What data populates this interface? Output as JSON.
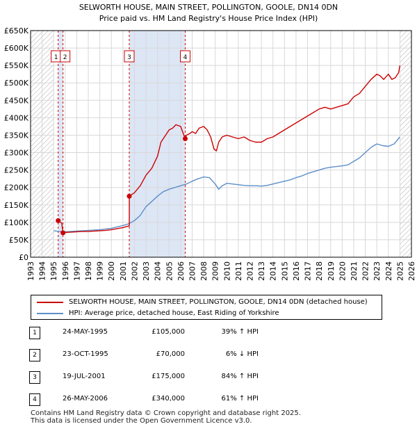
{
  "chart_data": {
    "type": "line",
    "title": "SELWORTH HOUSE, MAIN STREET, POLLINGTON, GOOLE, DN14 0DN",
    "subtitle": "Price paid vs. HM Land Registry's House Price Index (HPI)",
    "xlabel": "",
    "ylabel": "",
    "xlim": [
      1993,
      2026
    ],
    "ylim": [
      0,
      650000
    ],
    "x_ticks": [
      1993,
      1994,
      1995,
      1996,
      1997,
      1998,
      1999,
      2000,
      2001,
      2002,
      2003,
      2004,
      2005,
      2006,
      2007,
      2008,
      2009,
      2010,
      2011,
      2012,
      2013,
      2014,
      2015,
      2016,
      2017,
      2018,
      2019,
      2020,
      2021,
      2022,
      2023,
      2024,
      2025,
      2026
    ],
    "y_ticks": [
      {
        "value": 0,
        "label": "£0"
      },
      {
        "value": 50000,
        "label": "£50K"
      },
      {
        "value": 100000,
        "label": "£100K"
      },
      {
        "value": 150000,
        "label": "£150K"
      },
      {
        "value": 200000,
        "label": "£200K"
      },
      {
        "value": 250000,
        "label": "£250K"
      },
      {
        "value": 300000,
        "label": "£300K"
      },
      {
        "value": 350000,
        "label": "£350K"
      },
      {
        "value": 400000,
        "label": "£400K"
      },
      {
        "value": 450000,
        "label": "£450K"
      },
      {
        "value": 500000,
        "label": "£500K"
      },
      {
        "value": 550000,
        "label": "£550K"
      },
      {
        "value": 600000,
        "label": "£600K"
      },
      {
        "value": 650000,
        "label": "£650K"
      }
    ],
    "hatched_ranges": [
      [
        1993,
        1995.0
      ],
      [
        2025.0,
        2026
      ]
    ],
    "sale_bands": [
      [
        1995.39,
        1995.81
      ],
      [
        2001.55,
        2001.55
      ],
      [
        2006.4,
        2006.4
      ]
    ],
    "series": [
      {
        "name": "SELWORTH HOUSE, MAIN STREET, POLLINGTON, GOOLE, DN14 0DN (detached house)",
        "color": "#cc0000",
        "x": [
          1995.39,
          1995.5,
          1995.7,
          1995.81,
          1996.0,
          1996.5,
          1997.0,
          1997.5,
          1998.0,
          1998.5,
          1999.0,
          1999.5,
          2000.0,
          2000.5,
          2001.0,
          2001.3,
          2001.55,
          2001.56,
          2002.0,
          2002.5,
          2003.0,
          2003.5,
          2004.0,
          2004.3,
          2004.6,
          2005.0,
          2005.3,
          2005.6,
          2006.0,
          2006.4,
          2006.5,
          2006.8,
          2007.0,
          2007.3,
          2007.6,
          2008.0,
          2008.3,
          2008.6,
          2008.9,
          2009.1,
          2009.3,
          2009.6,
          2010.0,
          2010.5,
          2011.0,
          2011.5,
          2012.0,
          2012.5,
          2013.0,
          2013.5,
          2014.0,
          2014.5,
          2015.0,
          2015.5,
          2016.0,
          2016.5,
          2017.0,
          2017.5,
          2018.0,
          2018.5,
          2019.0,
          2019.5,
          2020.0,
          2020.5,
          2021.0,
          2021.5,
          2022.0,
          2022.5,
          2023.0,
          2023.3,
          2023.6,
          2024.0,
          2024.3,
          2024.6,
          2024.9,
          2025.0
        ],
        "values": [
          105000,
          102000,
          98000,
          70000,
          71000,
          72000,
          73000,
          74000,
          74000,
          75000,
          76000,
          77000,
          79000,
          82000,
          85000,
          88000,
          90000,
          175000,
          185000,
          205000,
          235000,
          255000,
          290000,
          330000,
          345000,
          365000,
          370000,
          380000,
          375000,
          340000,
          350000,
          355000,
          360000,
          355000,
          370000,
          375000,
          365000,
          345000,
          310000,
          305000,
          330000,
          345000,
          350000,
          345000,
          340000,
          345000,
          335000,
          330000,
          330000,
          340000,
          345000,
          355000,
          365000,
          375000,
          385000,
          395000,
          405000,
          415000,
          425000,
          430000,
          425000,
          430000,
          435000,
          440000,
          460000,
          470000,
          490000,
          510000,
          525000,
          520000,
          510000,
          525000,
          510000,
          515000,
          530000,
          550000
        ]
      },
      {
        "name": "HPI: Average price, detached house, East Riding of Yorkshire",
        "color": "#5b8ec9",
        "x": [
          1995.0,
          1995.5,
          1996.0,
          1996.5,
          1997.0,
          1997.5,
          1998.0,
          1998.5,
          1999.0,
          1999.5,
          2000.0,
          2000.5,
          2001.0,
          2001.5,
          2002.0,
          2002.5,
          2003.0,
          2003.5,
          2004.0,
          2004.5,
          2005.0,
          2005.5,
          2006.0,
          2006.5,
          2007.0,
          2007.5,
          2008.0,
          2008.5,
          2009.0,
          2009.3,
          2009.6,
          2010.0,
          2010.5,
          2011.0,
          2011.5,
          2012.0,
          2012.5,
          2013.0,
          2013.5,
          2014.0,
          2014.5,
          2015.0,
          2015.5,
          2016.0,
          2016.5,
          2017.0,
          2017.5,
          2018.0,
          2018.5,
          2019.0,
          2019.5,
          2020.0,
          2020.5,
          2021.0,
          2021.5,
          2022.0,
          2022.5,
          2023.0,
          2023.5,
          2024.0,
          2024.5,
          2025.0
        ],
        "values": [
          76000,
          74000,
          73000,
          74000,
          75000,
          76000,
          77000,
          78000,
          79000,
          81000,
          83000,
          87000,
          91000,
          96000,
          105000,
          120000,
          145000,
          160000,
          175000,
          188000,
          195000,
          200000,
          205000,
          210000,
          218000,
          225000,
          230000,
          228000,
          210000,
          195000,
          205000,
          212000,
          210000,
          208000,
          206000,
          205000,
          205000,
          204000,
          206000,
          210000,
          214000,
          218000,
          222000,
          228000,
          233000,
          240000,
          245000,
          250000,
          255000,
          258000,
          260000,
          262000,
          265000,
          275000,
          285000,
          300000,
          315000,
          325000,
          320000,
          318000,
          325000,
          345000
        ]
      }
    ],
    "sale_markers": [
      {
        "id": "1",
        "x": 1995.39,
        "value": 105000
      },
      {
        "id": "2",
        "x": 1995.81,
        "value": 70000
      },
      {
        "id": "3",
        "x": 2001.55,
        "value": 175000
      },
      {
        "id": "4",
        "x": 2006.4,
        "value": 340000
      }
    ]
  },
  "legend": {
    "property_label": "SELWORTH HOUSE, MAIN STREET, POLLINGTON, GOOLE, DN14 0DN (detached house)",
    "hpi_label": "HPI: Average price, detached house, East Riding of Yorkshire"
  },
  "sales": [
    {
      "num": "1",
      "date": "24-MAY-1995",
      "price": "£105,000",
      "hpi": "39% ↑ HPI"
    },
    {
      "num": "2",
      "date": "23-OCT-1995",
      "price": "£70,000",
      "hpi": "6% ↓ HPI"
    },
    {
      "num": "3",
      "date": "19-JUL-2001",
      "price": "£175,000",
      "hpi": "84% ↑ HPI"
    },
    {
      "num": "4",
      "date": "26-MAY-2006",
      "price": "£340,000",
      "hpi": "61% ↑ HPI"
    }
  ],
  "footer": {
    "line1": "Contains HM Land Registry data © Crown copyright and database right 2025.",
    "line2": "This data is licensed under the Open Government Licence v3.0."
  },
  "colors": {
    "property_line": "#cc0000",
    "hpi_line": "#5b8ec9",
    "sale_band": "#dde6f5",
    "grid": "#d8d8d8",
    "vline": "#cc0000"
  }
}
